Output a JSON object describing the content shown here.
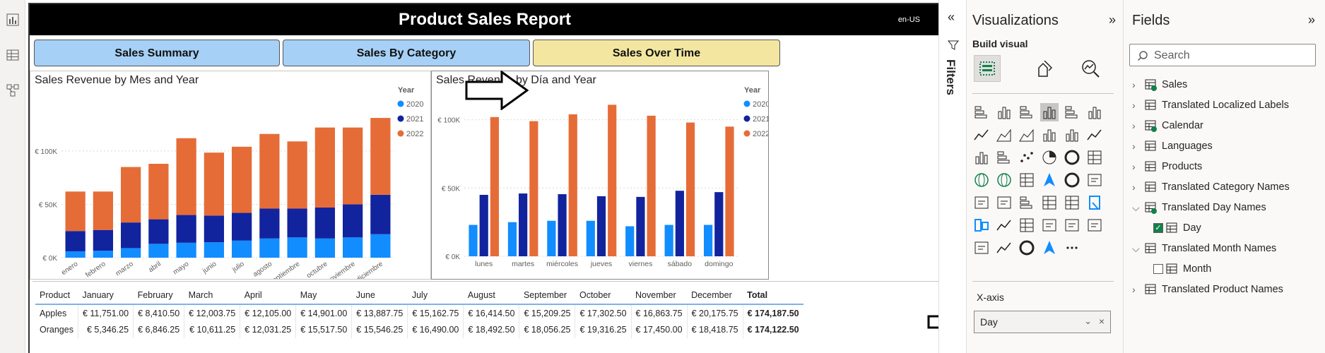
{
  "report": {
    "title": "Product Sales Report",
    "locale": "en-US",
    "nav": [
      {
        "label": "Sales Summary",
        "color": "#a6d0f5"
      },
      {
        "label": "Sales By Category",
        "color": "#a6d0f5"
      },
      {
        "label": "Sales Over Time",
        "color": "#f3e6a0"
      }
    ]
  },
  "chart_month": {
    "chart_data": {
      "type": "bar",
      "stacked": true,
      "title": "Sales Revenue by Mes and Year",
      "categories": [
        "enero",
        "febrero",
        "marzo",
        "abril",
        "mayo",
        "junio",
        "julio",
        "agosto",
        "septiembre",
        "octubre",
        "noviembre",
        "diciembre"
      ],
      "yticks": [
        "€ 0K",
        "€ 50K",
        "€ 100K"
      ],
      "ylim": [
        0,
        135000
      ],
      "legend": {
        "title": "Year",
        "position": "right"
      },
      "series": [
        {
          "name": "2020",
          "color": "#118dff",
          "values": [
            6000,
            6500,
            9000,
            13000,
            14000,
            14500,
            16000,
            18000,
            19000,
            18000,
            19000,
            22000
          ]
        },
        {
          "name": "2021",
          "color": "#12239e",
          "values": [
            19000,
            19500,
            24000,
            23000,
            26000,
            25000,
            26000,
            28000,
            27000,
            29000,
            31000,
            37000
          ]
        },
        {
          "name": "2022",
          "color": "#e66c37",
          "values": [
            37000,
            36000,
            52000,
            52000,
            72000,
            59000,
            62000,
            70000,
            63000,
            75000,
            72000,
            72000
          ]
        }
      ]
    }
  },
  "chart_day": {
    "chart_data": {
      "type": "bar",
      "stacked": false,
      "title": "Sales Revenue by Día and Year",
      "categories": [
        "lunes",
        "martes",
        "miércoles",
        "jueves",
        "viernes",
        "sábado",
        "domingo"
      ],
      "yticks": [
        "€ 0K",
        "€ 50K",
        "€ 100K"
      ],
      "ylim": [
        0,
        120000
      ],
      "legend": {
        "title": "Year",
        "position": "right"
      },
      "series": [
        {
          "name": "2020",
          "color": "#118dff",
          "values": [
            23000,
            25000,
            26000,
            26000,
            22000,
            23000,
            23000
          ]
        },
        {
          "name": "2021",
          "color": "#12239e",
          "values": [
            45000,
            46000,
            45500,
            44000,
            43500,
            48000,
            47000
          ]
        },
        {
          "name": "2022",
          "color": "#e66c37",
          "values": [
            102000,
            99000,
            104000,
            111000,
            103000,
            98000,
            95000
          ]
        }
      ]
    }
  },
  "matrix": {
    "headers": [
      "Product",
      "January",
      "February",
      "March",
      "April",
      "May",
      "June",
      "July",
      "August",
      "September",
      "October",
      "November",
      "December",
      "Total"
    ],
    "rows": [
      [
        "Apples",
        "€ 11,751.00",
        "€ 8,410.50",
        "€ 12,003.75",
        "€ 12,105.00",
        "€ 14,901.00",
        "€ 13,887.75",
        "€ 15,162.75",
        "€ 16,414.50",
        "€ 15,209.25",
        "€ 17,302.50",
        "€ 16,863.75",
        "€ 20,175.75",
        "€ 174,187.50"
      ],
      [
        "Oranges",
        "€ 5,346.25",
        "€ 6,846.25",
        "€ 10,611.25",
        "€ 12,031.25",
        "€ 15,517.50",
        "€ 15,546.25",
        "€ 16,490.00",
        "€ 18,492.50",
        "€ 18,056.25",
        "€ 19,316.25",
        "€ 17,450.00",
        "€ 18,418.75",
        "€ 174,122.50"
      ]
    ]
  },
  "filters": {
    "label": "Filters"
  },
  "visualizations": {
    "title": "Visualizations",
    "build_visual": "Build visual",
    "xaxis_label": "X-axis",
    "xaxis_field": "Day"
  },
  "fields": {
    "title": "Fields",
    "search_placeholder": "Search",
    "items": [
      {
        "label": "Sales",
        "expanded": false,
        "checked_badge": true,
        "indent": 0
      },
      {
        "label": "Translated Localized Labels",
        "expanded": false,
        "checked_badge": false,
        "indent": 0
      },
      {
        "label": "Calendar",
        "expanded": false,
        "checked_badge": true,
        "indent": 0
      },
      {
        "label": "Languages",
        "expanded": false,
        "checked_badge": false,
        "indent": 0
      },
      {
        "label": "Products",
        "expanded": false,
        "checked_badge": false,
        "indent": 0
      },
      {
        "label": "Translated Category Names",
        "expanded": false,
        "checked_badge": false,
        "indent": 0
      },
      {
        "label": "Translated Day Names",
        "expanded": true,
        "checked_badge": true,
        "indent": 0
      },
      {
        "label": "Day",
        "checkbox": true,
        "checked": true,
        "indent": 1
      },
      {
        "label": "Translated Month Names",
        "expanded": true,
        "checked_badge": false,
        "indent": 0
      },
      {
        "label": "Month",
        "checkbox": true,
        "checked": false,
        "indent": 1
      },
      {
        "label": "Translated Product Names",
        "expanded": false,
        "checked_badge": false,
        "indent": 0
      }
    ]
  }
}
